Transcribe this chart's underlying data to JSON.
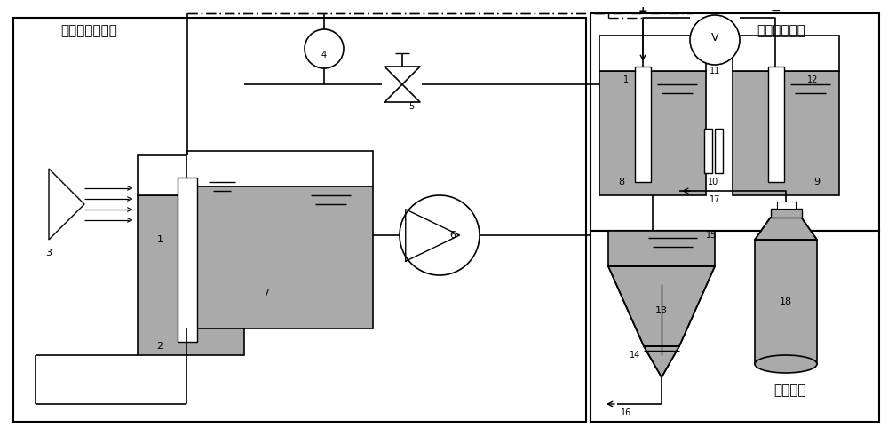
{
  "bg_color": "#ffffff",
  "gray": "#aaaaaa",
  "lgray": "#c0c0c0",
  "black": "#000000",
  "section1_label": "光卧化还原提取",
  "section2_label": "电氧卧化富集",
  "section3_label": "沉淠分离"
}
